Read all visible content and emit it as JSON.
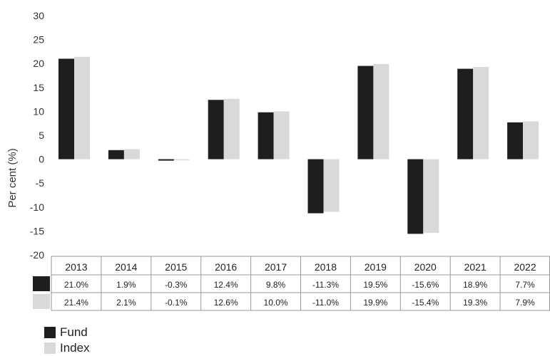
{
  "colors": {
    "fund": "#1e1e1e",
    "index": "#d9d9d9",
    "grid": "#999999"
  },
  "chart_data": {
    "type": "bar",
    "title": "",
    "xlabel": "",
    "ylabel": "Per cent (%)",
    "ylim": [
      -20,
      30
    ],
    "yticks": [
      30,
      25,
      20,
      15,
      10,
      5,
      0,
      -5,
      -10,
      -15,
      -20
    ],
    "grid": false,
    "legend_position": "bottom-left",
    "categories": [
      "2013",
      "2014",
      "2015",
      "2016",
      "2017",
      "2018",
      "2019",
      "2020",
      "2021",
      "2022"
    ],
    "series": [
      {
        "name": "Fund",
        "values": [
          21.0,
          1.9,
          -0.3,
          12.4,
          9.8,
          -11.3,
          19.5,
          -15.6,
          18.9,
          7.7
        ],
        "labels": [
          "21.0%",
          "1.9%",
          "-0.3%",
          "12.4%",
          "9.8%",
          "-11.3%",
          "19.5%",
          "-15.6%",
          "18.9%",
          "7.7%"
        ]
      },
      {
        "name": "Index",
        "values": [
          21.4,
          2.1,
          -0.1,
          12.6,
          10.0,
          -11.0,
          19.9,
          -15.4,
          19.3,
          7.9
        ],
        "labels": [
          "21.4%",
          "2.1%",
          "-0.1%",
          "12.6%",
          "10.0%",
          "-11.0%",
          "19.9%",
          "-15.4%",
          "19.3%",
          "7.9%"
        ]
      }
    ]
  }
}
